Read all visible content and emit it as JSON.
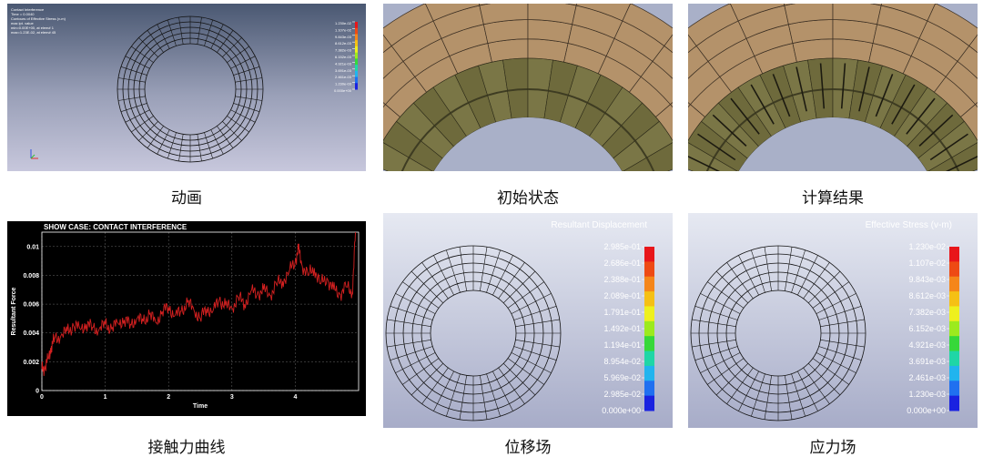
{
  "captions": {
    "animation": "动画",
    "initial_state": "初始状态",
    "result": "计算结果",
    "contact_force": "接触力曲线",
    "displacement": "位移场",
    "stress": "应力场"
  },
  "animation_panel": {
    "header_lines": [
      "Contact Interference",
      "Time = 0.0040",
      "Contours of Effective Stress (v-m)",
      "max ipt. value",
      "min=0.00E+00, at elem# 1",
      "max=1.23E-02, at elem# 45"
    ],
    "legend_labels": [
      "1.230e-02",
      "1.107e-02",
      "9.843e-03",
      "8.612e-03",
      "7.382e-03",
      "6.152e-03",
      "4.921e-03",
      "3.691e-03",
      "2.461e-03",
      "1.230e-03",
      "0.000e+00"
    ]
  },
  "displacement_panel": {
    "legend_title": "Resultant Displacement",
    "legend_labels": [
      "2.985e-01",
      "2.686e-01",
      "2.388e-01",
      "2.089e-01",
      "1.791e-01",
      "1.492e-01",
      "1.194e-01",
      "8.954e-02",
      "5.969e-02",
      "2.985e-02",
      "0.000e+00"
    ],
    "legend_colors": [
      "#e8161a",
      "#ee4a14",
      "#f5861a",
      "#f5c015",
      "#eef01e",
      "#9cea1e",
      "#36d83a",
      "#1fd6a6",
      "#21b4ee",
      "#2070f0",
      "#1a22e0"
    ]
  },
  "stress_panel": {
    "legend_title": "Effective Stress (v-m)",
    "legend_labels": [
      "1.230e-02",
      "1.107e-02",
      "9.843e-03",
      "8.612e-03",
      "7.382e-03",
      "6.152e-03",
      "4.921e-03",
      "3.691e-03",
      "2.461e-03",
      "1.230e-03",
      "0.000e+00"
    ],
    "legend_colors": [
      "#e8161a",
      "#ee4a14",
      "#f5861a",
      "#f5c015",
      "#eef01e",
      "#9cea1e",
      "#36d83a",
      "#1fd6a6",
      "#21b4ee",
      "#2070f0",
      "#1a22e0"
    ]
  },
  "chart_data": {
    "type": "line",
    "title": "SHOW CASE: CONTACT INTERFERENCE",
    "xlabel": "Time",
    "ylabel": "Resultant Force",
    "xlim": [
      0,
      5
    ],
    "ylim": [
      0,
      0.011
    ],
    "xticks": [
      "0",
      "1",
      "2",
      "3",
      "4"
    ],
    "yticks": [
      "0",
      "0.002",
      "0.004",
      "0.006",
      "0.008",
      "0.01"
    ],
    "grid": true,
    "series": [
      {
        "color": "#d42020",
        "x": [
          0,
          0.05,
          0.1,
          0.15,
          0.2,
          0.3,
          0.4,
          0.5,
          0.6,
          0.7,
          0.8,
          0.9,
          1.0,
          1.1,
          1.2,
          1.3,
          1.4,
          1.5,
          1.6,
          1.7,
          1.8,
          1.9,
          2.0,
          2.1,
          2.2,
          2.3,
          2.4,
          2.5,
          2.6,
          2.7,
          2.8,
          2.9,
          3.0,
          3.1,
          3.2,
          3.3,
          3.4,
          3.5,
          3.6,
          3.7,
          3.8,
          3.9,
          4.0,
          4.05,
          4.1,
          4.2,
          4.3,
          4.4,
          4.5,
          4.6,
          4.7,
          4.8,
          4.9,
          4.95
        ],
        "y": [
          0.0015,
          0.0016,
          0.0022,
          0.0031,
          0.0036,
          0.0038,
          0.0041,
          0.0045,
          0.0043,
          0.0046,
          0.0044,
          0.0042,
          0.0046,
          0.0043,
          0.0047,
          0.0049,
          0.0046,
          0.005,
          0.0048,
          0.0053,
          0.0047,
          0.0055,
          0.0058,
          0.0052,
          0.0055,
          0.0061,
          0.0056,
          0.005,
          0.0057,
          0.0055,
          0.0063,
          0.0059,
          0.0057,
          0.0065,
          0.006,
          0.0069,
          0.0067,
          0.007,
          0.0066,
          0.0074,
          0.0076,
          0.0082,
          0.009,
          0.0098,
          0.0088,
          0.008,
          0.0085,
          0.0074,
          0.0078,
          0.007,
          0.0067,
          0.0072,
          0.0068,
          0.011
        ]
      }
    ]
  }
}
